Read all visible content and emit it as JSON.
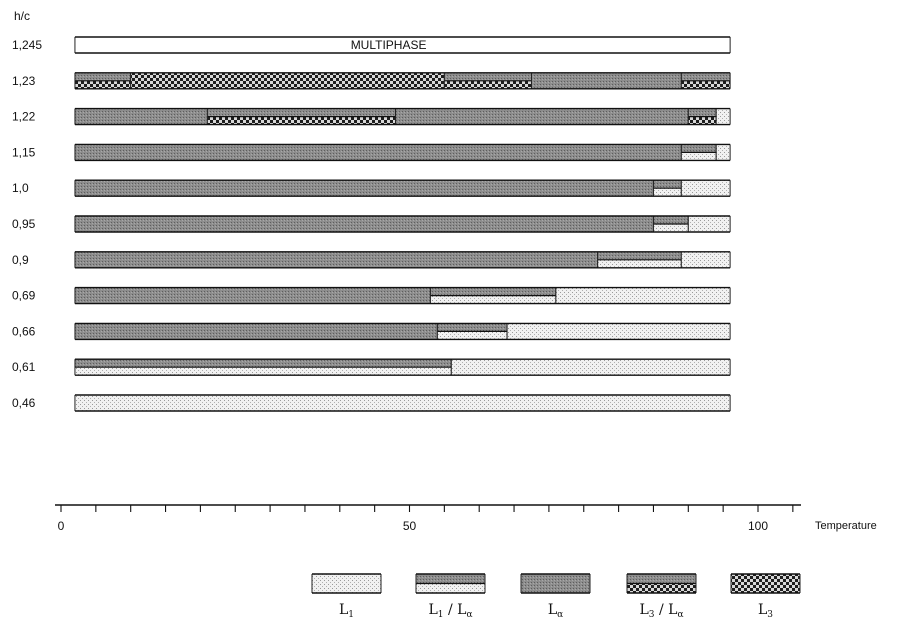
{
  "chart_data": {
    "type": "bar",
    "orientation": "horizontal-stacked",
    "y_title": "h/c",
    "xlabel": "Temperature",
    "xlim": [
      0,
      107
    ],
    "x_ticks": [
      0,
      50,
      100
    ],
    "x_tick_labels": [
      "0",
      "50",
      "100"
    ],
    "phases": [
      {
        "id": "L1",
        "label_main": "L",
        "label_sub": "1",
        "color": "#e9e9e9"
      },
      {
        "id": "L1La",
        "label_main": "L",
        "label_sub": "1",
        "label_sep": "/ L",
        "label_sub2": "α",
        "color": "#bdbdbd"
      },
      {
        "id": "La",
        "label_main": "L",
        "label_sub": "α",
        "color": "#8a8a8a"
      },
      {
        "id": "L3La",
        "label_main": "L",
        "label_sub": "3",
        "label_sep": "/ L",
        "label_sub2": "α",
        "color": "#555555"
      },
      {
        "id": "L3",
        "label_main": "L",
        "label_sub": "3",
        "color": "#3a3a3a"
      }
    ],
    "rows": [
      {
        "label": "1,245",
        "annotation": "MULTIPHASE",
        "segments": [
          {
            "phase": "MULTIPHASE",
            "from": 2,
            "to": 96
          }
        ]
      },
      {
        "label": "1,23",
        "segments": [
          {
            "phase": "L3La",
            "from": 2,
            "to": 10
          },
          {
            "phase": "L3",
            "from": 10,
            "to": 55
          },
          {
            "phase": "L3La",
            "from": 55,
            "to": 67.5
          },
          {
            "phase": "La",
            "from": 67.5,
            "to": 89
          },
          {
            "phase": "L3La",
            "from": 89,
            "to": 96
          }
        ]
      },
      {
        "label": "1,22",
        "segments": [
          {
            "phase": "La",
            "from": 2,
            "to": 21
          },
          {
            "phase": "L3La",
            "from": 21,
            "to": 48
          },
          {
            "phase": "La",
            "from": 48,
            "to": 90
          },
          {
            "phase": "L3La",
            "from": 90,
            "to": 94
          },
          {
            "phase": "L1",
            "from": 94,
            "to": 96
          }
        ]
      },
      {
        "label": "1,15",
        "segments": [
          {
            "phase": "La",
            "from": 2,
            "to": 89
          },
          {
            "phase": "L1La",
            "from": 89,
            "to": 94
          },
          {
            "phase": "L1",
            "from": 94,
            "to": 96
          }
        ]
      },
      {
        "label": "1,0",
        "segments": [
          {
            "phase": "La",
            "from": 2,
            "to": 85
          },
          {
            "phase": "L1La",
            "from": 85,
            "to": 89
          },
          {
            "phase": "L1",
            "from": 89,
            "to": 96
          }
        ]
      },
      {
        "label": "0,95",
        "segments": [
          {
            "phase": "La",
            "from": 2,
            "to": 85
          },
          {
            "phase": "L1La",
            "from": 85,
            "to": 90
          },
          {
            "phase": "L1",
            "from": 90,
            "to": 96
          }
        ]
      },
      {
        "label": "0,9",
        "segments": [
          {
            "phase": "La",
            "from": 2,
            "to": 77
          },
          {
            "phase": "L1La",
            "from": 77,
            "to": 89
          },
          {
            "phase": "L1",
            "from": 89,
            "to": 96
          }
        ]
      },
      {
        "label": "0,69",
        "segments": [
          {
            "phase": "La",
            "from": 2,
            "to": 53
          },
          {
            "phase": "L1La",
            "from": 53,
            "to": 71
          },
          {
            "phase": "L1",
            "from": 71,
            "to": 96
          }
        ]
      },
      {
        "label": "0,66",
        "segments": [
          {
            "phase": "La",
            "from": 2,
            "to": 54
          },
          {
            "phase": "L1La",
            "from": 54,
            "to": 64
          },
          {
            "phase": "L1",
            "from": 64,
            "to": 96
          }
        ]
      },
      {
        "label": "0,61",
        "segments": [
          {
            "phase": "L1La",
            "from": 2,
            "to": 56
          },
          {
            "phase": "L1",
            "from": 56,
            "to": 96
          }
        ]
      },
      {
        "label": "0,46",
        "segments": [
          {
            "phase": "L1",
            "from": 2,
            "to": 96
          }
        ]
      }
    ]
  }
}
